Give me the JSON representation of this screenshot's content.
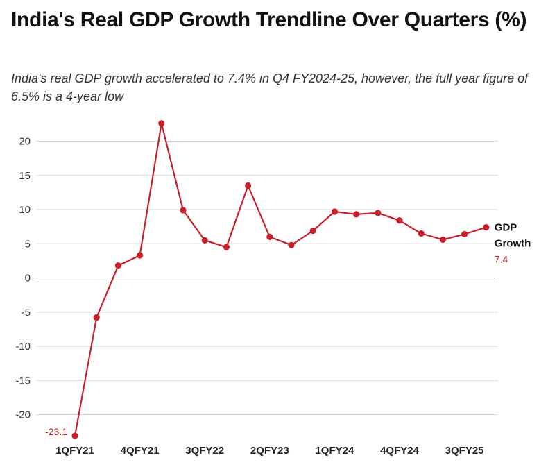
{
  "chart_data": {
    "type": "line",
    "title": "India's Real GDP Growth Trendline Over Quarters (%)",
    "subtitle": "India's real GDP growth accelerated to 7.4% in Q4 FY2024-25, however, the full year figure of 6.5% is a 4-year low",
    "xlabel": "",
    "ylabel": "",
    "ylim": [
      -23.5,
      25
    ],
    "yticks": [
      20,
      15,
      10,
      5,
      0,
      -5,
      -10,
      -15,
      -20
    ],
    "ytick_labels": [
      "20",
      "15",
      "10",
      "5",
      "0",
      "-5",
      "-10",
      "-15",
      "-20"
    ],
    "x_tick_labels": [
      "1QFY21",
      "4QFY21",
      "3QFY22",
      "2QFY23",
      "1QFY24",
      "4QFY24",
      "3QFY25"
    ],
    "x_tick_every": 3,
    "grid": true,
    "series": [
      {
        "name": "GDP Growth",
        "label_line1": "GDP",
        "label_line2": "Growth",
        "color": "#c8202a",
        "values": [
          -23.1,
          -5.8,
          1.8,
          3.3,
          22.6,
          9.9,
          5.5,
          4.5,
          13.5,
          6.0,
          4.8,
          6.9,
          9.7,
          9.3,
          9.5,
          8.4,
          6.5,
          5.6,
          6.4,
          7.4
        ],
        "first_label": "-23.1",
        "last_label": "7.4"
      }
    ]
  }
}
